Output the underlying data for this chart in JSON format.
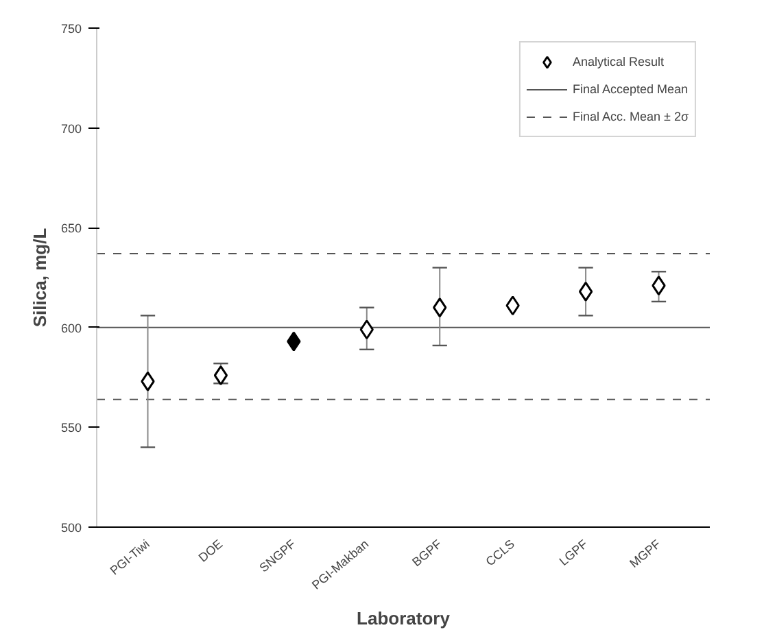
{
  "chart_data": {
    "type": "scatter",
    "xlabel": "Laboratory",
    "ylabel": "Silica, mg/L",
    "categories": [
      "PGI-Tiwi",
      "DOE",
      "SNGPF",
      "PGI-Makban",
      "BGPF",
      "CCLS",
      "LGPF",
      "MGPF"
    ],
    "series": [
      {
        "name": "Analytical Result",
        "color": "#000000",
        "colors": [
          "#ffffff",
          "#ffffff",
          "#000000",
          "#ffffff",
          "#ffffff",
          "#ffffff",
          "#ffffff",
          "#ffffff"
        ],
        "values": [
          573,
          576,
          593,
          599,
          610,
          611,
          618,
          621
        ],
        "errors": [
          [
            540,
            606
          ],
          [
            572,
            582
          ],
          null,
          [
            589,
            610
          ],
          [
            591,
            630
          ],
          null,
          [
            606,
            630
          ],
          [
            613,
            628
          ]
        ]
      }
    ],
    "ref_lines": [
      {
        "axis": "y",
        "value": 600,
        "label": "Final Accepted Mean",
        "color": "#555555",
        "line_style": "solid"
      },
      {
        "axis": "y",
        "value": 637,
        "label": "Final Acc. Mean ± 2σ",
        "color": "#555555",
        "line_style": "dashed"
      },
      {
        "axis": "y",
        "value": 564,
        "color": "#555555",
        "line_style": "dashed"
      }
    ],
    "ylim": [
      500,
      750
    ],
    "yticks": [
      500,
      550,
      600,
      650,
      700,
      750
    ],
    "marker": "diamond",
    "grid": false,
    "legend": "top right"
  }
}
